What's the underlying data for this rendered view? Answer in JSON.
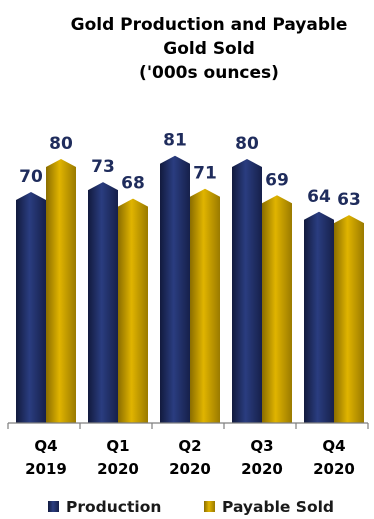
{
  "chart_data": {
    "type": "bar",
    "title_lines": [
      "Gold Production and Payable",
      "Gold Sold",
      "('000s ounces)"
    ],
    "categories": [
      [
        "Q4",
        "2019"
      ],
      [
        "Q1",
        "2020"
      ],
      [
        "Q2",
        "2020"
      ],
      [
        "Q3",
        "2020"
      ],
      [
        "Q4",
        "2020"
      ]
    ],
    "series": [
      {
        "name": "Production",
        "values": [
          70,
          73,
          81,
          80,
          64
        ],
        "color": "#1f2c5c"
      },
      {
        "name": "Payable Sold",
        "values": [
          80,
          68,
          71,
          69,
          63
        ],
        "color": "#c9a000"
      }
    ],
    "ylim": [
      0,
      100
    ],
    "grid": false,
    "legend_position": "bottom"
  }
}
